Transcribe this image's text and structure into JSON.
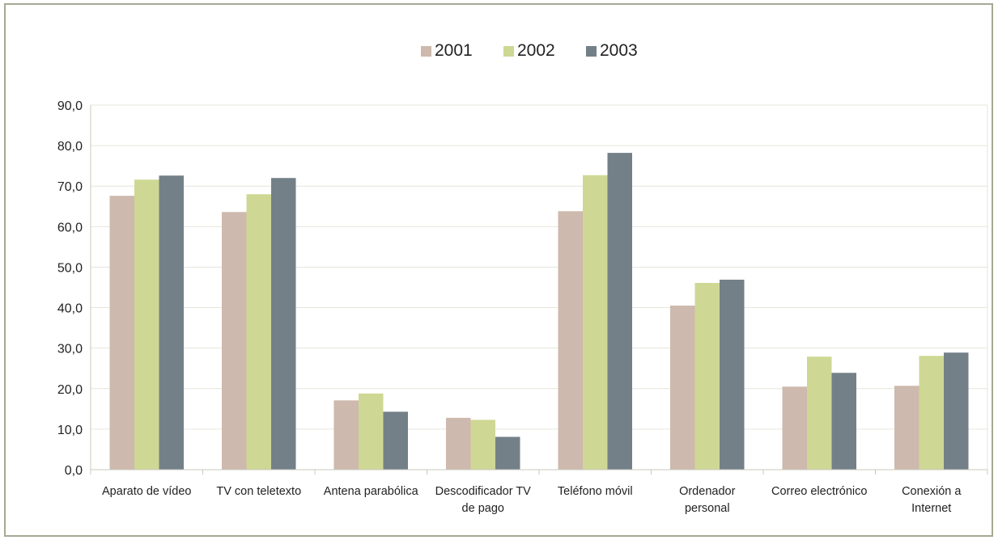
{
  "chart_data": {
    "type": "bar",
    "categories": [
      [
        "Aparato de vídeo"
      ],
      [
        "TV con teletexto"
      ],
      [
        "Antena parabólica"
      ],
      [
        "Descodificador TV",
        "de pago"
      ],
      [
        "Teléfono móvil"
      ],
      [
        "Ordenador",
        "personal"
      ],
      [
        "Correo electrónico"
      ],
      [
        "Conexión a",
        "Internet"
      ]
    ],
    "series": [
      {
        "name": "2001",
        "color": "#cdb9ad",
        "values": [
          67.6,
          63.6,
          17.1,
          12.8,
          63.8,
          40.5,
          20.5,
          20.7
        ]
      },
      {
        "name": "2002",
        "color": "#ced894",
        "values": [
          71.6,
          68.0,
          18.8,
          12.3,
          72.7,
          46.1,
          27.9,
          28.1
        ]
      },
      {
        "name": "2003",
        "color": "#738088",
        "values": [
          72.6,
          72.0,
          14.3,
          8.1,
          78.2,
          46.9,
          23.9,
          28.9
        ]
      }
    ],
    "y_ticks": [
      "0,0",
      "10,0",
      "20,0",
      "30,0",
      "40,0",
      "50,0",
      "60,0",
      "70,0",
      "80,0",
      "90,0"
    ],
    "ylim": [
      0,
      90
    ],
    "grid": true,
    "legend_position": "top-center",
    "title": "",
    "xlabel": "",
    "ylabel": ""
  }
}
